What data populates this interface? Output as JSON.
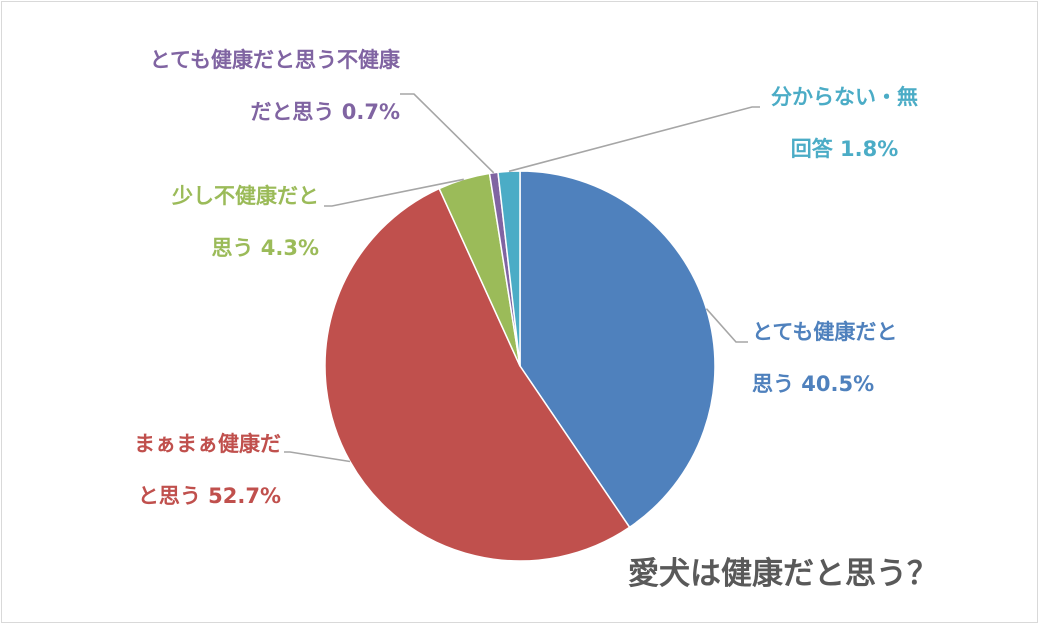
{
  "chart_data": {
    "type": "pie",
    "title": "愛犬は健康だと思う？",
    "slices": [
      {
        "label_lines": [
          "とても健康だと",
          "思う 40.5%"
        ],
        "value": 40.5,
        "color": "#4f81bd"
      },
      {
        "label_lines": [
          "まぁまぁ健康だ",
          "と思う 52.7%"
        ],
        "value": 52.7,
        "color": "#c0504d"
      },
      {
        "label_lines": [
          "少し不健康だと",
          "思う 4.3%"
        ],
        "value": 4.3,
        "color": "#9bbb59"
      },
      {
        "label_lines": [
          "とても健康だと思う不健康",
          "だと思う 0.7%"
        ],
        "value": 0.7,
        "color": "#8064a2"
      },
      {
        "label_lines": [
          "分からない・無",
          "回答 1.8%"
        ],
        "value": 1.8,
        "color": "#4bacc6"
      }
    ],
    "start_angle_deg": 0,
    "direction": "clockwise",
    "legend": "none",
    "leader_line_color": "#a6a6a6",
    "title_color": "#595959"
  }
}
